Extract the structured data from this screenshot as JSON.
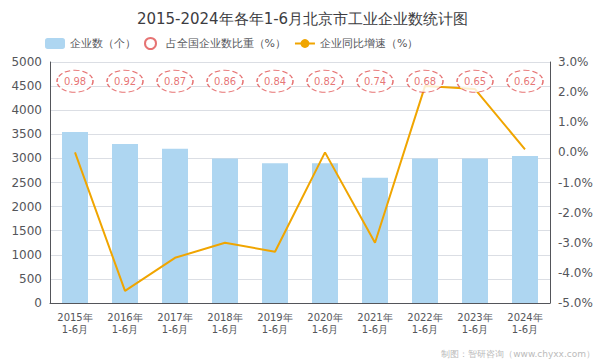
{
  "chart_data": {
    "type": "bar",
    "title": "2015-2024年各年1-6月北京市工业企业数统计图",
    "categories": [
      "2015年\n1-6月",
      "2016年\n1-6月",
      "2017年\n1-6月",
      "2018年\n1-6月",
      "2019年\n1-6月",
      "2020年\n1-6月",
      "2021年\n1-6月",
      "2022年\n1-6月",
      "2023年\n1-6月",
      "2024年\n1-6月"
    ],
    "series": [
      {
        "name": "企业数（个）",
        "type": "bar",
        "color": "#aed6f1",
        "values": [
          3550,
          3300,
          3200,
          3000,
          2900,
          2900,
          2600,
          3000,
          3000,
          3050
        ]
      },
      {
        "name": "占全国企业数比重（%）",
        "type": "scatter",
        "marker": "circle",
        "line_style": "dashed",
        "color": "#e05050",
        "data_labels": true,
        "values": [
          0.98,
          0.92,
          0.87,
          0.86,
          0.84,
          0.82,
          0.74,
          0.68,
          0.65,
          0.62
        ]
      },
      {
        "name": "企业同比增速（%）",
        "type": "line",
        "axis": "y2",
        "color": "#f0a500",
        "values": [
          0.0,
          -4.6,
          -3.5,
          -3.0,
          -3.3,
          0.0,
          -3.0,
          2.2,
          2.1,
          0.1
        ]
      }
    ],
    "ylim": [
      0,
      5000
    ],
    "yticks": [
      0,
      500,
      1000,
      1500,
      2000,
      2500,
      3000,
      3500,
      4000,
      4500,
      5000
    ],
    "y2lim": [
      -5.0,
      3.0
    ],
    "y2ticks": [
      {
        "value": -5.0,
        "label": "-5.0%"
      },
      {
        "value": -4.0,
        "label": "-4.0%"
      },
      {
        "value": -3.0,
        "label": "-3.0%"
      },
      {
        "value": -2.0,
        "label": "-2.0%"
      },
      {
        "value": -1.0,
        "label": "-1.0%"
      },
      {
        "value": 0.0,
        "label": "0.0%"
      },
      {
        "value": 1.0,
        "label": "1.0%"
      },
      {
        "value": 2.0,
        "label": "2.0%"
      },
      {
        "value": 3.0,
        "label": "3.0%"
      }
    ],
    "grid": true,
    "legend": "upper left",
    "annotations": [
      "制图：智研咨询（www.chyxx.com）"
    ]
  }
}
